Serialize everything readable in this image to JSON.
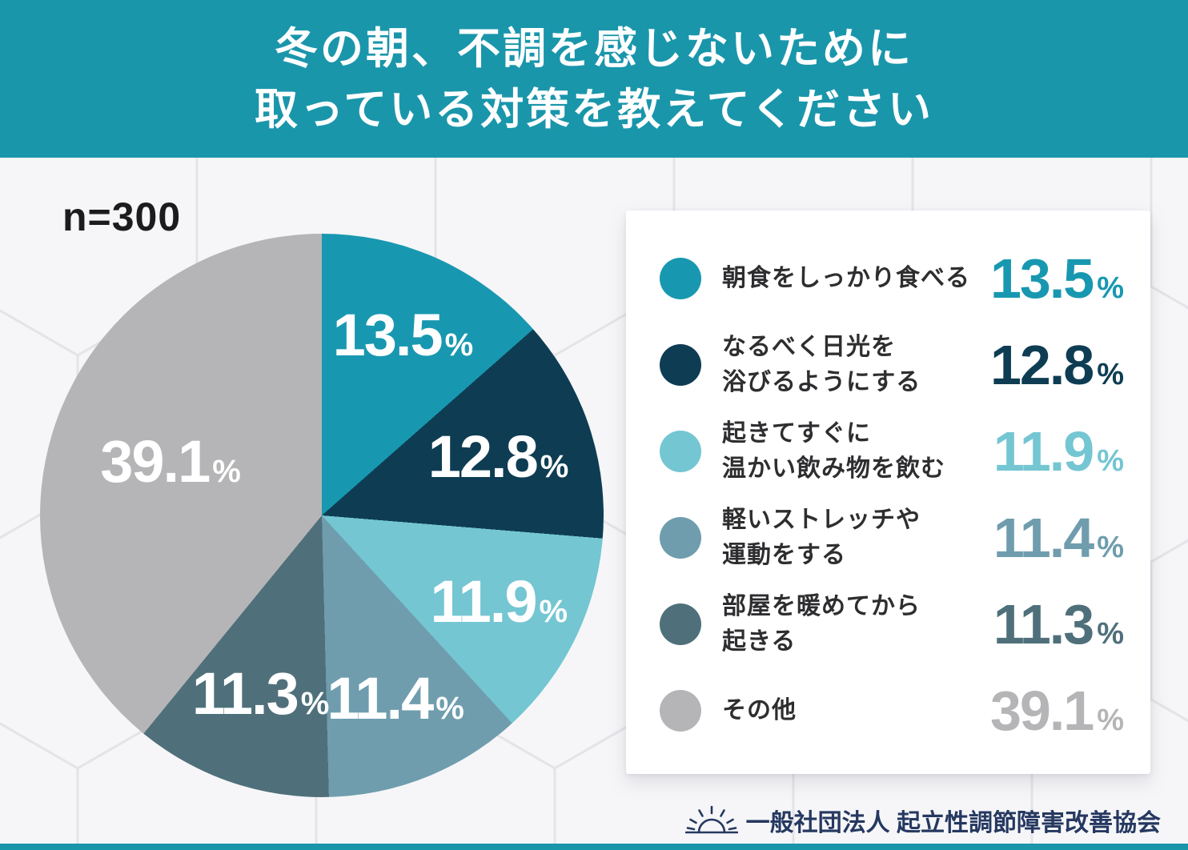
{
  "theme": {
    "accent": "#1a96ab",
    "page_bg": "#f0f0f2",
    "card_bg": "#ffffff",
    "title_text_color": "#ffffff",
    "sample_label_color": "#1c1c1e",
    "legend_label_color": "#2e2e30",
    "pie_label_color": "#ffffff",
    "footer_color": "#253860"
  },
  "header": {
    "title_line1": "冬の朝、不調を感じないために",
    "title_line2": "取っている対策を教えてください"
  },
  "sample_label": "n=300",
  "chart_data": {
    "type": "pie",
    "title": "冬の朝、不調を感じないために取っている対策を教えてください",
    "sample_size": "n=300",
    "unit": "%",
    "start_angle_deg": 0,
    "direction": "clockwise",
    "legend_position": "right",
    "slices": [
      {
        "label": "朝食をしっかり食べる",
        "legend_lines": [
          "朝食をしっかり食べる"
        ],
        "value": 13.5,
        "color": "#1898b0"
      },
      {
        "label": "なるべく日光を浴びるようにする",
        "legend_lines": [
          "なるべく日光を",
          "浴びるようにする"
        ],
        "value": 12.8,
        "color": "#0e3d53"
      },
      {
        "label": "起きてすぐに温かい飲み物を飲む",
        "legend_lines": [
          "起きてすぐに",
          "温かい飲み物を飲む"
        ],
        "value": 11.9,
        "color": "#74c6d2"
      },
      {
        "label": "軽いストレッチや運動をする",
        "legend_lines": [
          "軽いストレッチや",
          "運動をする"
        ],
        "value": 11.4,
        "color": "#6f9dae"
      },
      {
        "label": "部屋を暖めてから起きる",
        "legend_lines": [
          "部屋を暖めてから",
          "起きる"
        ],
        "value": 11.3,
        "color": "#4f707b"
      },
      {
        "label": "その他",
        "legend_lines": [
          "その他"
        ],
        "value": 39.1,
        "color": "#b5b5b7"
      }
    ]
  },
  "footer": {
    "org_label": "一般社団法人 起立性調節障害改善協会",
    "icon": "rising-sun-icon"
  }
}
